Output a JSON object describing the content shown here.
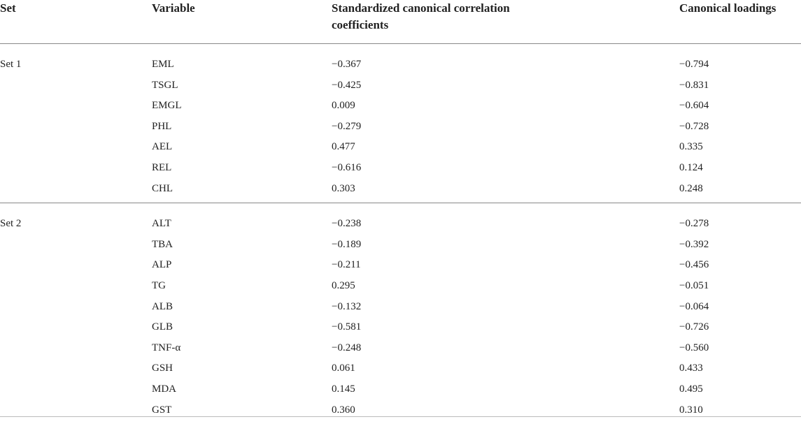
{
  "headers": {
    "set": "Set",
    "variable": "Variable",
    "std_coef_line1": "Standardized canonical correlation",
    "std_coef_line2": "coefficients",
    "loadings": "Canonical loadings"
  },
  "groups": [
    {
      "set": "Set 1",
      "rows": [
        {
          "variable": "EML",
          "coef": "−0.367",
          "loading": "−0.794"
        },
        {
          "variable": "TSGL",
          "coef": "−0.425",
          "loading": "−0.831"
        },
        {
          "variable": "EMGL",
          "coef": "0.009",
          "loading": "−0.604"
        },
        {
          "variable": "PHL",
          "coef": "−0.279",
          "loading": "−0.728"
        },
        {
          "variable": "AEL",
          "coef": "0.477",
          "loading": "0.335"
        },
        {
          "variable": "REL",
          "coef": "−0.616",
          "loading": "0.124"
        },
        {
          "variable": "CHL",
          "coef": "0.303",
          "loading": "0.248"
        }
      ]
    },
    {
      "set": "Set 2",
      "rows": [
        {
          "variable": "ALT",
          "coef": "−0.238",
          "loading": "−0.278"
        },
        {
          "variable": "TBA",
          "coef": "−0.189",
          "loading": "−0.392"
        },
        {
          "variable": "ALP",
          "coef": "−0.211",
          "loading": "−0.456"
        },
        {
          "variable": "TG",
          "coef": "0.295",
          "loading": "−0.051"
        },
        {
          "variable": "ALB",
          "coef": "−0.132",
          "loading": "−0.064"
        },
        {
          "variable": "GLB",
          "coef": "−0.581",
          "loading": "−0.726"
        },
        {
          "variable": "TNF-α",
          "coef": "−0.248",
          "loading": "−0.560"
        },
        {
          "variable": "GSH",
          "coef": "0.061",
          "loading": "0.433"
        },
        {
          "variable": "MDA",
          "coef": "0.145",
          "loading": "0.495"
        },
        {
          "variable": "GST",
          "coef": "0.360",
          "loading": "0.310"
        }
      ]
    }
  ]
}
